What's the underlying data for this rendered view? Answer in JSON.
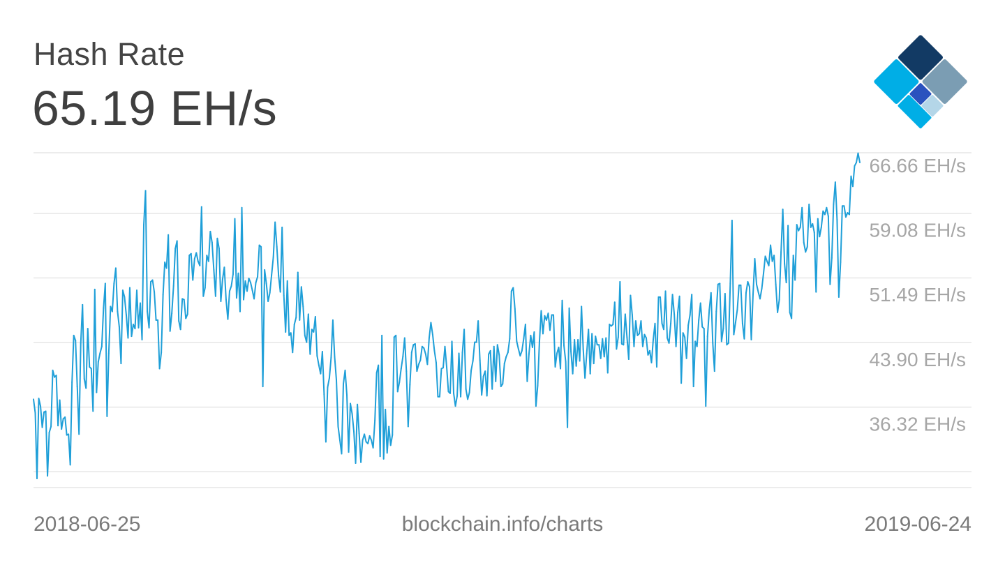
{
  "header": {
    "title": "Hash Rate",
    "current_value": "65.19 EH/s"
  },
  "footer": {
    "start_date": "2018-06-25",
    "source": "blockchain.info/charts",
    "end_date": "2019-06-24"
  },
  "colors": {
    "line": "#1f9fd8",
    "grid": "#d9d9d9",
    "tick_label": "#a6a6a6",
    "logo_dark": "#123a64",
    "logo_slate": "#7b9db3",
    "logo_blue": "#2a52be",
    "logo_cyan": "#00aee6",
    "logo_light": "#b4d6e8"
  },
  "logo": {
    "icon": "blockchain-diamond-logo"
  },
  "chart_data": {
    "type": "line",
    "title": "",
    "xlabel": "",
    "ylabel": "",
    "ylim": [
      28.73,
      68.05
    ],
    "y_ticks": [
      36.32,
      43.9,
      51.49,
      59.08,
      66.66
    ],
    "y_tick_labels": [
      "36.32 EH/s",
      "43.90 EH/s",
      "51.49 EH/s",
      "59.08 EH/s",
      "66.66 EH/s"
    ],
    "x_start": "2018-06-25",
    "x_end": "2019-06-24",
    "grid": true,
    "legend": "none",
    "series": [
      {
        "values": [
          39.1,
          37.5,
          29.8,
          39.2,
          38.3,
          35.8,
          37.6,
          37.7,
          30.1,
          35.2,
          35.9,
          42.5,
          41.7,
          41.9,
          36.0,
          39.0,
          35.6,
          36.8,
          37.0,
          34.9,
          35.0,
          31.4,
          41.1,
          46.6,
          46.0,
          40.6,
          35.0,
          45.7,
          50.2,
          41.5,
          40.4,
          47.4,
          42.9,
          42.7,
          37.7,
          52.0,
          39.9,
          43.5,
          44.5,
          45.3,
          49.8,
          52.7,
          37.1,
          44.5,
          50.0,
          49.4,
          52.7,
          54.5,
          49.4,
          47.6,
          43.3,
          51.9,
          51.1,
          49.0,
          46.3,
          52.2,
          46.5,
          47.9,
          47.4,
          51.9,
          47.5,
          50.4,
          46.1,
          59.6,
          63.6,
          49.4,
          47.5,
          52.9,
          53.1,
          51.7,
          48.4,
          48.4,
          42.7,
          44.6,
          51.4,
          55.2,
          54.5,
          58.4,
          47.1,
          49.2,
          52.4,
          56.8,
          57.7,
          48.3,
          47.3,
          50.9,
          50.8,
          48.6,
          49.1,
          56.0,
          56.2,
          53.1,
          55.6,
          56.3,
          55.3,
          54.8,
          61.7,
          51.2,
          52.2,
          56.0,
          55.3,
          58.8,
          57.5,
          54.3,
          51.2,
          58.0,
          56.8,
          50.6,
          53.2,
          54.6,
          50.8,
          48.5,
          51.8,
          52.4,
          53.8,
          60.3,
          51.0,
          53.9,
          49.4,
          61.6,
          50.8,
          53.0,
          51.8,
          53.3,
          52.8,
          51.9,
          50.9,
          52.8,
          53.5,
          57.2,
          57.0,
          40.6,
          54.3,
          52.7,
          50.6,
          51.6,
          53.7,
          55.8,
          59.9,
          57.0,
          53.6,
          51.7,
          59.3,
          51.3,
          47.0,
          53.0,
          46.6,
          46.9,
          44.6,
          47.9,
          48.7,
          54.0,
          48.4,
          52.3,
          50.0,
          46.6,
          45.8,
          49.1,
          44.4,
          47.3,
          47.0,
          48.8,
          44.2,
          43.1,
          42.1,
          44.7,
          39.7,
          34.1,
          40.5,
          41.6,
          44.0,
          48.4,
          44.1,
          41.4,
          35.9,
          34.3,
          32.7,
          40.9,
          42.5,
          39.6,
          32.9,
          38.6,
          37.4,
          35.3,
          31.6,
          38.5,
          35.1,
          31.7,
          34.3,
          35.0,
          34.1,
          33.9,
          34.8,
          34.3,
          33.4,
          36.6,
          42.2,
          43.1,
          32.4,
          46.6,
          32.1,
          37.9,
          32.8,
          35.9,
          33.7,
          34.9,
          46.4,
          46.6,
          40.0,
          41.1,
          42.7,
          44.1,
          46.3,
          42.4,
          35.9,
          40.8,
          44.6,
          45.5,
          45.6,
          42.4,
          43.2,
          43.7,
          45.3,
          45.1,
          44.4,
          43.2,
          46.3,
          48.1,
          46.7,
          44.8,
          43.4,
          39.4,
          39.4,
          42.7,
          42.8,
          45.3,
          42.9,
          40.0,
          39.8,
          45.9,
          39.8,
          38.3,
          39.5,
          44.5,
          39.4,
          44.6,
          47.3,
          40.3,
          39.1,
          39.9,
          42.5,
          43.6,
          45.8,
          45.8,
          48.3,
          43.7,
          39.6,
          41.8,
          42.4,
          39.5,
          44.4,
          44.8,
          40.3,
          45.3,
          41.2,
          45.5,
          44.3,
          40.6,
          40.9,
          43.3,
          44.1,
          44.6,
          46.2,
          51.8,
          52.2,
          49.7,
          45.9,
          45.0,
          44.2,
          44.8,
          46.2,
          47.9,
          41.2,
          44.4,
          46.6,
          45.2,
          47.0,
          38.3,
          40.7,
          45.9,
          49.5,
          46.8,
          48.9,
          48.4,
          49.2,
          47.2,
          49.0,
          49.0,
          42.9,
          44.5,
          45.2,
          42.7,
          50.7,
          45.4,
          43.5,
          35.8,
          49.8,
          44.7,
          42.1,
          46.1,
          43.0,
          46.1,
          43.6,
          50.0,
          45.0,
          41.6,
          44.5,
          47.3,
          42.1,
          46.8,
          43.3,
          46.5,
          45.5,
          45.5,
          43.9,
          46.2,
          44.1,
          46.3,
          42.2,
          47.9,
          47.7,
          47.9,
          50.5,
          45.0,
          46.4,
          52.9,
          45.6,
          45.5,
          49.1,
          46.4,
          43.8,
          51.3,
          49.0,
          45.3,
          48.3,
          46.6,
          46.8,
          48.3,
          45.3,
          46.7,
          46.3,
          44.3,
          44.8,
          43.4,
          46.1,
          48.0,
          42.9,
          51.1,
          51.1,
          48.0,
          47.3,
          51.8,
          46.3,
          45.7,
          48.0,
          51.4,
          49.1,
          45.3,
          49.3,
          51.2,
          41.0,
          46.9,
          46.4,
          43.9,
          47.8,
          49.0,
          51.4,
          40.6,
          45.9,
          45.3,
          48.4,
          50.4,
          47.6,
          47.4,
          38.3,
          46.5,
          49.6,
          51.6,
          45.7,
          42.4,
          49.4,
          52.6,
          52.7,
          45.9,
          47.4,
          51.5,
          45.5,
          45.7,
          52.7,
          60.1,
          46.7,
          48.1,
          49.6,
          52.5,
          52.5,
          48.0,
          46.2,
          51.6,
          52.9,
          52.3,
          46.1,
          51.4,
          55.6,
          52.6,
          51.7,
          50.9,
          52.1,
          53.9,
          55.9,
          55.3,
          54.8,
          57.2,
          55.3,
          56.0,
          52.6,
          49.3,
          50.8,
          56.4,
          61.4,
          55.0,
          52.8,
          59.5,
          49.3,
          48.6,
          56.0,
          53.1,
          59.6,
          58.9,
          59.3,
          61.6,
          57.5,
          56.4,
          57.0,
          62.0,
          59.3,
          59.7,
          58.7,
          51.7,
          60.3,
          58.2,
          59.3,
          61.2,
          60.8,
          61.6,
          60.6,
          52.6,
          55.7,
          62.0,
          64.6,
          60.2,
          51.1,
          55.2,
          61.8,
          61.8,
          60.5,
          61.0,
          60.8,
          65.3,
          64.1,
          66.5,
          66.9,
          68.0,
          66.9
        ]
      }
    ]
  }
}
